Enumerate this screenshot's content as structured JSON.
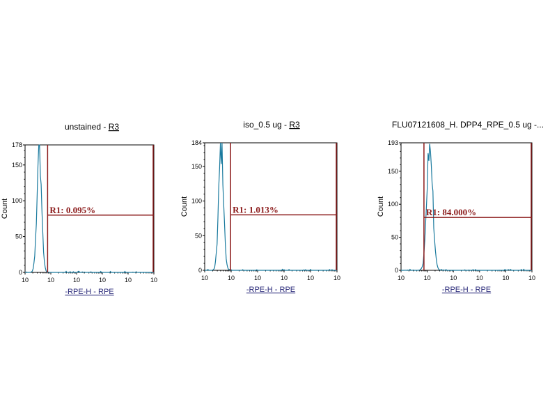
{
  "chart_data": [
    {
      "type": "histogram",
      "title": "unstained - ",
      "title_link": "R3",
      "xlabel": "-RPE-H - RPE",
      "ylabel": "Count",
      "x_scale": "log",
      "xlim": [
        1,
        100000
      ],
      "x_tick_labels": [
        "10",
        "10",
        "10",
        "10",
        "10",
        "10"
      ],
      "ylim": [
        0,
        178
      ],
      "y_ticks": [
        0,
        50,
        100,
        150,
        178
      ],
      "gate": {
        "label": "R1: 0.095%",
        "start": 7.5,
        "end": 100000,
        "level": 80
      },
      "peak": {
        "center_log10": 0.55,
        "width_log10": 0.09,
        "height": 178
      },
      "series_color": "#1a7a9e",
      "gate_color": "#8b1a1a"
    },
    {
      "type": "histogram",
      "title": "iso_0.5 ug - ",
      "title_link": "R3",
      "xlabel": "-RPE-H - RPE",
      "ylabel": "Count",
      "x_scale": "log",
      "xlim": [
        1,
        100000
      ],
      "x_tick_labels": [
        "10",
        "10",
        "10",
        "10",
        "10",
        "10"
      ],
      "ylim": [
        0,
        184
      ],
      "y_ticks": [
        0,
        50,
        100,
        150,
        184
      ],
      "gate": {
        "label": "R1: 1.013%",
        "start": 9.5,
        "end": 100000,
        "level": 80
      },
      "peak": {
        "center_log10": 0.62,
        "width_log10": 0.09,
        "height": 184
      },
      "series_color": "#1a7a9e",
      "gate_color": "#8b1a1a"
    },
    {
      "type": "histogram",
      "title": "FLU07121608_H. DPP4_RPE_0.5 ug -...",
      "title_link": "",
      "xlabel": "-RPE-H - RPE",
      "ylabel": "Count",
      "x_scale": "log",
      "xlim": [
        1,
        100000
      ],
      "x_tick_labels": [
        "10",
        "10",
        "10",
        "10",
        "10",
        "10"
      ],
      "ylim": [
        0,
        193
      ],
      "y_ticks": [
        0,
        50,
        100,
        150,
        193
      ],
      "gate": {
        "label": "R1: 84.000%",
        "start": 7.5,
        "end": 100000,
        "level": 80
      },
      "peak": {
        "center_log10": 1.1,
        "width_log10": 0.11,
        "height": 193
      },
      "series_color": "#1a7a9e",
      "gate_color": "#8b1a1a"
    }
  ]
}
